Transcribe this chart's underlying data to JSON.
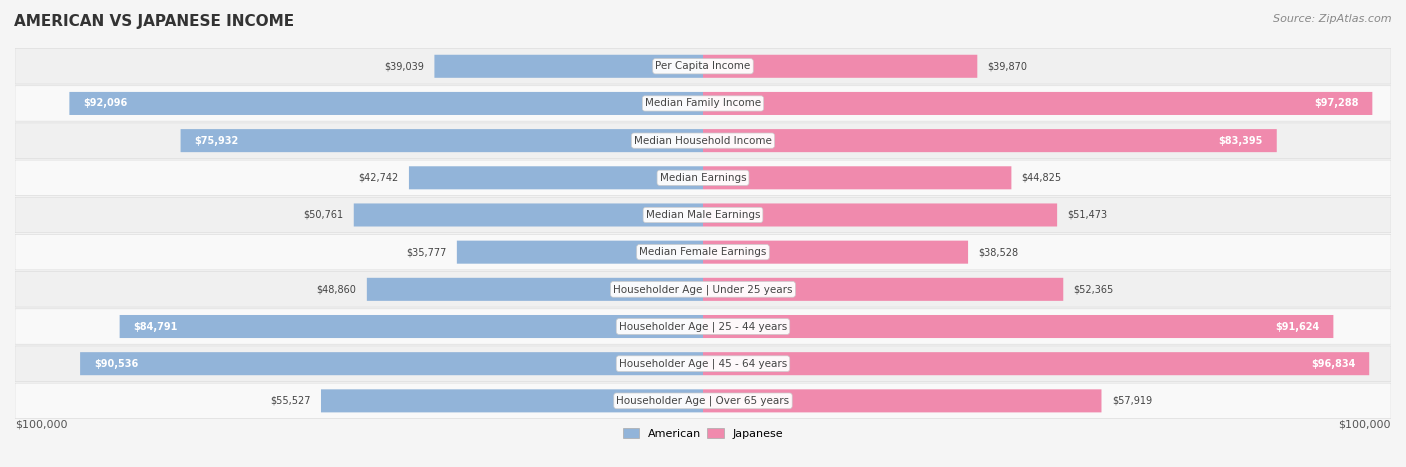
{
  "title": "AMERICAN VS JAPANESE INCOME",
  "source": "Source: ZipAtlas.com",
  "categories": [
    "Per Capita Income",
    "Median Family Income",
    "Median Household Income",
    "Median Earnings",
    "Median Male Earnings",
    "Median Female Earnings",
    "Householder Age | Under 25 years",
    "Householder Age | 25 - 44 years",
    "Householder Age | 45 - 64 years",
    "Householder Age | Over 65 years"
  ],
  "american_values": [
    39039,
    92096,
    75932,
    42742,
    50761,
    35777,
    48860,
    84791,
    90536,
    55527
  ],
  "japanese_values": [
    39870,
    97288,
    83395,
    44825,
    51473,
    38528,
    52365,
    91624,
    96834,
    57919
  ],
  "max_value": 100000,
  "american_color": "#92b4d9",
  "japanese_color": "#f08aad",
  "american_color_dark": "#6699cc",
  "japanese_color_dark": "#e8668f",
  "background_color": "#f5f5f5",
  "row_bg_light": "#f9f9f9",
  "row_bg_dark": "#f0f0f0",
  "label_color": "#333333",
  "title_color": "#333333"
}
